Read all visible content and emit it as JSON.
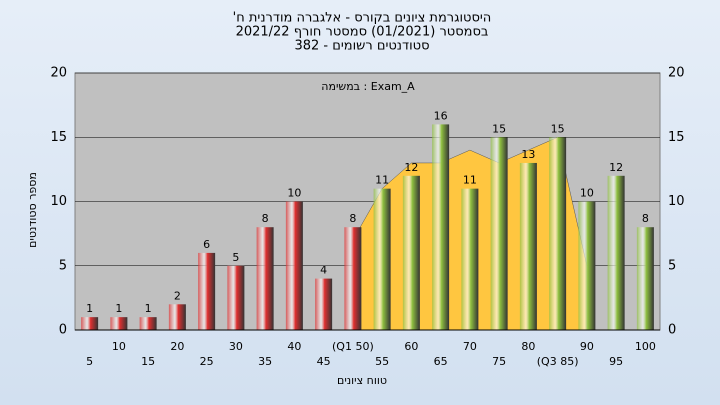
{
  "chart_data": {
    "type": "bar",
    "title_lines": [
      "היסטוגרמת ציונים בקורס - אלגברה מודרנית ח'",
      "בסמסטר (01/2021) סמסטר חורף 2021/22",
      "סטודנטים רשומים - 382"
    ],
    "annotation": "במשימה : Exam_A",
    "x_label": "טווח ציונים",
    "y_label": "מספר סטודנטים",
    "categories": [
      "5",
      "10",
      "15",
      "20",
      "25",
      "30",
      "35",
      "40",
      "45",
      "(Q1 50)",
      "55",
      "60",
      "65",
      "70",
      "75",
      "80",
      "(Q3 85)",
      "90",
      "95",
      "100"
    ],
    "values": [
      1,
      1,
      1,
      2,
      6,
      5,
      8,
      10,
      4,
      8,
      11,
      12,
      16,
      11,
      15,
      13,
      15,
      10,
      12,
      8
    ],
    "colors": [
      "#e03030",
      "#e03030",
      "#e03030",
      "#e03030",
      "#e03030",
      "#e03030",
      "#e03030",
      "#e03030",
      "#e03030",
      "#e03030",
      "#8fc040",
      "#8fc040",
      "#8fc040",
      "#8fc040",
      "#8fc040",
      "#8fc040",
      "#8fc040",
      "#8fc040",
      "#8fc040",
      "#8fc040"
    ],
    "area": {
      "color": "#ffc640",
      "values": [
        null,
        null,
        null,
        null,
        null,
        null,
        null,
        null,
        null,
        7,
        11,
        13,
        13,
        14,
        13,
        14,
        15,
        5,
        null,
        null
      ]
    },
    "ylim": [
      0,
      20
    ],
    "yticks": [
      0,
      5,
      10,
      15,
      20
    ],
    "grid": true
  }
}
